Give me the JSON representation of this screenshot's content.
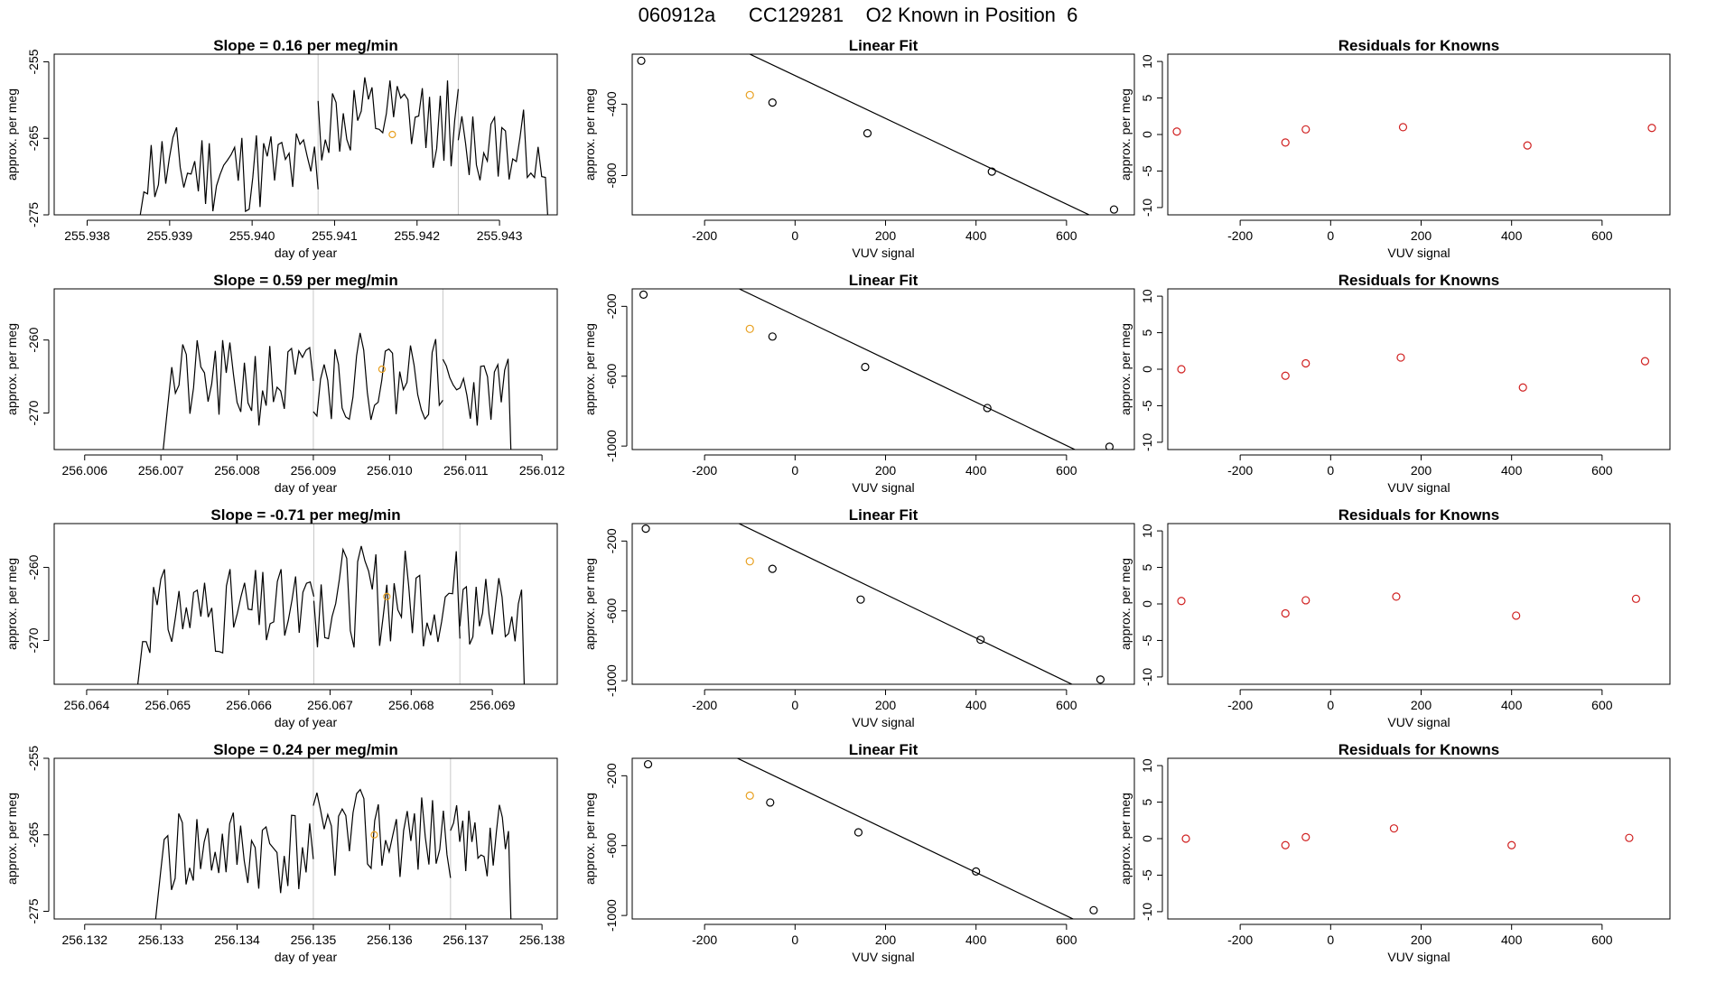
{
  "page": {
    "title": "060912a      CC129281    O2 Known in Position  6"
  },
  "colors": {
    "line": "#000000",
    "vline": "#c8c8c8",
    "known": "#e8a020",
    "residual": "#d02020",
    "fitpoint": "#000000"
  },
  "chart_data": [
    {
      "type": "line",
      "title": "Slope =  0.16  per meg/min",
      "xlabel": "day of year",
      "ylabel": "approx. per meg",
      "xlim": [
        255.9376,
        255.9437
      ],
      "ylim": [
        -275,
        -254
      ],
      "xticks": [
        255.938,
        255.939,
        255.94,
        255.941,
        255.942,
        255.943
      ],
      "xtick_labels": [
        "255.938",
        "255.939",
        "255.940",
        "255.941",
        "255.942",
        "255.943"
      ],
      "yticks": [
        -275,
        -265,
        -255
      ],
      "ytick_labels": [
        "-275",
        "-265",
        "-255"
      ],
      "vlines": [
        255.9408,
        255.9425
      ],
      "known_point": [
        255.9417,
        -264.5
      ],
      "segments": [
        {
          "x_start": 255.9386,
          "x_end": 255.9408,
          "base": -269,
          "amp": 6,
          "ramp": 0.25,
          "seed": 11
        },
        {
          "x_start": 255.9408,
          "x_end": 255.9425,
          "base": -263,
          "amp": 6,
          "seed": 12
        },
        {
          "x_start": 255.9425,
          "x_end": 255.9436,
          "base": -266,
          "amp": 5,
          "fall": 0.12,
          "seed": 13
        }
      ]
    },
    {
      "type": "scatter",
      "title": "Linear Fit",
      "xlabel": "VUV signal",
      "ylabel": "approx. per meg",
      "xlim": [
        -360,
        750
      ],
      "ylim": [
        -1020,
        -120
      ],
      "xticks": [
        -200,
        0,
        200,
        400,
        600
      ],
      "xtick_labels": [
        "-200",
        "0",
        "200",
        "400",
        "600"
      ],
      "yticks": [
        -800,
        -400
      ],
      "ytick_labels": [
        "-800",
        "-400"
      ],
      "fit": {
        "slope": -1.2,
        "intercept": -240
      },
      "points": [
        [
          -340,
          -157
        ],
        [
          -100,
          -349
        ],
        [
          -50,
          -391
        ],
        [
          160,
          -563
        ],
        [
          435,
          -778
        ],
        [
          705,
          -990
        ]
      ],
      "known_index": 1
    },
    {
      "type": "scatter",
      "title": "Residuals for Knowns",
      "xlabel": "VUV signal",
      "ylabel": "approx. per meg",
      "xlim": [
        -360,
        750
      ],
      "ylim": [
        -11,
        11
      ],
      "xticks": [
        -200,
        0,
        200,
        400,
        600
      ],
      "xtick_labels": [
        "-200",
        "0",
        "200",
        "400",
        "600"
      ],
      "yticks": [
        -10,
        -5,
        0,
        5,
        10
      ],
      "ytick_labels": [
        "-10",
        "-5",
        "0",
        "5",
        "10"
      ],
      "points": [
        [
          -340,
          0.4
        ],
        [
          -100,
          -1.1
        ],
        [
          -55,
          0.7
        ],
        [
          160,
          1.0
        ],
        [
          435,
          -1.5
        ],
        [
          710,
          0.9
        ]
      ]
    },
    {
      "type": "line",
      "title": "Slope =  0.59  per meg/min",
      "xlabel": "day of year",
      "ylabel": "approx. per meg",
      "xlim": [
        256.0056,
        256.0122
      ],
      "ylim": [
        -275,
        -253
      ],
      "xticks": [
        256.006,
        256.007,
        256.008,
        256.009,
        256.01,
        256.011,
        256.012
      ],
      "xtick_labels": [
        "256.006",
        "256.007",
        "256.008",
        "256.009",
        "256.010",
        "256.011",
        "256.012"
      ],
      "yticks": [
        -270,
        -260
      ],
      "ytick_labels": [
        "-270",
        "-260"
      ],
      "vlines": [
        256.009,
        256.0107
      ],
      "known_point": [
        256.0099,
        -264
      ],
      "segments": [
        {
          "x_start": 256.007,
          "x_end": 256.009,
          "base": -266,
          "amp": 6,
          "ramp": 0.2,
          "seed": 21
        },
        {
          "x_start": 256.009,
          "x_end": 256.0107,
          "base": -265,
          "amp": 6,
          "seed": 22
        },
        {
          "x_start": 256.0107,
          "x_end": 256.0116,
          "base": -267,
          "amp": 5,
          "fall": 0.12,
          "seed": 23
        }
      ]
    },
    {
      "type": "scatter",
      "title": "Linear Fit",
      "xlabel": "VUV signal",
      "ylabel": "approx. per meg",
      "xlim": [
        -360,
        750
      ],
      "ylim": [
        -1020,
        -100
      ],
      "xticks": [
        -200,
        0,
        200,
        400,
        600
      ],
      "xtick_labels": [
        "-200",
        "0",
        "200",
        "400",
        "600"
      ],
      "yticks": [
        -1000,
        -600,
        -200
      ],
      "ytick_labels": [
        "-1000",
        "-600",
        "-200"
      ],
      "fit": {
        "slope": -1.24,
        "intercept": -253
      },
      "points": [
        [
          -335,
          -133
        ],
        [
          -100,
          -329
        ],
        [
          -50,
          -373
        ],
        [
          155,
          -547
        ],
        [
          425,
          -782
        ],
        [
          695,
          -1004
        ]
      ],
      "known_index": 1
    },
    {
      "type": "scatter",
      "title": "Residuals for Knowns",
      "xlabel": "VUV signal",
      "ylabel": "approx. per meg",
      "xlim": [
        -360,
        750
      ],
      "ylim": [
        -11,
        11
      ],
      "xticks": [
        -200,
        0,
        200,
        400,
        600
      ],
      "xtick_labels": [
        "-200",
        "0",
        "200",
        "400",
        "600"
      ],
      "yticks": [
        -10,
        -5,
        0,
        5,
        10
      ],
      "ytick_labels": [
        "-10",
        "-5",
        "0",
        "5",
        "10"
      ],
      "points": [
        [
          -330,
          0.0
        ],
        [
          -100,
          -0.9
        ],
        [
          -55,
          0.8
        ],
        [
          155,
          1.6
        ],
        [
          425,
          -2.5
        ],
        [
          695,
          1.1
        ]
      ]
    },
    {
      "type": "line",
      "title": "Slope =  -0.71  per meg/min",
      "xlabel": "day of year",
      "ylabel": "approx. per meg",
      "xlim": [
        256.0636,
        256.0698
      ],
      "ylim": [
        -276,
        -254
      ],
      "xticks": [
        256.064,
        256.065,
        256.066,
        256.067,
        256.068,
        256.069
      ],
      "xtick_labels": [
        "256.064",
        "256.065",
        "256.066",
        "256.067",
        "256.068",
        "256.069"
      ],
      "yticks": [
        -270,
        -260
      ],
      "ytick_labels": [
        "-270",
        "-260"
      ],
      "vlines": [
        256.0668,
        256.0686
      ],
      "known_point": [
        256.0677,
        -264
      ],
      "segments": [
        {
          "x_start": 256.0646,
          "x_end": 256.0668,
          "base": -266,
          "amp": 6,
          "ramp": 0.2,
          "seed": 31
        },
        {
          "x_start": 256.0668,
          "x_end": 256.0686,
          "base": -264,
          "amp": 7,
          "seed": 32
        },
        {
          "x_start": 256.0686,
          "x_end": 256.0694,
          "base": -266,
          "amp": 5,
          "fall": 0.12,
          "seed": 33
        }
      ]
    },
    {
      "type": "scatter",
      "title": "Linear Fit",
      "xlabel": "VUV signal",
      "ylabel": "approx. per meg",
      "xlim": [
        -360,
        750
      ],
      "ylim": [
        -1020,
        -100
      ],
      "xticks": [
        -200,
        0,
        200,
        400,
        600
      ],
      "xtick_labels": [
        "-200",
        "0",
        "200",
        "400",
        "600"
      ],
      "yticks": [
        -1000,
        -600,
        -200
      ],
      "ytick_labels": [
        "-1000",
        "-600",
        "-200"
      ],
      "fit": {
        "slope": -1.25,
        "intercept": -255
      },
      "points": [
        [
          -330,
          -129
        ],
        [
          -100,
          -316
        ],
        [
          -50,
          -359
        ],
        [
          145,
          -535
        ],
        [
          410,
          -765
        ],
        [
          675,
          -993
        ]
      ],
      "known_index": 1
    },
    {
      "type": "scatter",
      "title": "Residuals for Knowns",
      "xlabel": "VUV signal",
      "ylabel": "approx. per meg",
      "xlim": [
        -360,
        750
      ],
      "ylim": [
        -11,
        11
      ],
      "xticks": [
        -200,
        0,
        200,
        400,
        600
      ],
      "xtick_labels": [
        "-200",
        "0",
        "200",
        "400",
        "600"
      ],
      "yticks": [
        -10,
        -5,
        0,
        5,
        10
      ],
      "ytick_labels": [
        "-10",
        "-5",
        "0",
        "5",
        "10"
      ],
      "points": [
        [
          -330,
          0.4
        ],
        [
          -100,
          -1.3
        ],
        [
          -55,
          0.5
        ],
        [
          145,
          1.0
        ],
        [
          410,
          -1.6
        ],
        [
          675,
          0.7
        ]
      ]
    },
    {
      "type": "line",
      "title": "Slope =  0.24  per meg/min",
      "xlabel": "day of year",
      "ylabel": "approx. per meg",
      "xlim": [
        256.1316,
        256.1382
      ],
      "ylim": [
        -276,
        -255
      ],
      "xticks": [
        256.132,
        256.133,
        256.134,
        256.135,
        256.136,
        256.137,
        256.138
      ],
      "xtick_labels": [
        "256.132",
        "256.133",
        "256.134",
        "256.135",
        "256.136",
        "256.137",
        "256.138"
      ],
      "yticks": [
        -275,
        -265,
        -255
      ],
      "ytick_labels": [
        "-275",
        "-265",
        "-255"
      ],
      "vlines": [
        256.135,
        256.1368
      ],
      "known_point": [
        256.1358,
        -265
      ],
      "segments": [
        {
          "x_start": 256.1329,
          "x_end": 256.135,
          "base": -267,
          "amp": 6,
          "ramp": 0.2,
          "seed": 41
        },
        {
          "x_start": 256.135,
          "x_end": 256.1368,
          "base": -265,
          "amp": 6,
          "seed": 42
        },
        {
          "x_start": 256.1368,
          "x_end": 256.1376,
          "base": -266,
          "amp": 5,
          "fall": 0.12,
          "seed": 43
        }
      ]
    },
    {
      "type": "scatter",
      "title": "Linear Fit",
      "xlabel": "VUV signal",
      "ylabel": "approx. per meg",
      "xlim": [
        -360,
        750
      ],
      "ylim": [
        -1020,
        -100
      ],
      "xticks": [
        -200,
        0,
        200,
        400,
        600
      ],
      "xtick_labels": [
        "-200",
        "0",
        "200",
        "400",
        "600"
      ],
      "yticks": [
        -1000,
        -600,
        -200
      ],
      "ytick_labels": [
        "-1000",
        "-600",
        "-200"
      ],
      "fit": {
        "slope": -1.24,
        "intercept": -258
      },
      "points": [
        [
          -325,
          -134
        ],
        [
          -100,
          -314
        ],
        [
          -55,
          -353
        ],
        [
          140,
          -524
        ],
        [
          400,
          -748
        ],
        [
          660,
          -970
        ]
      ],
      "known_index": 1
    },
    {
      "type": "scatter",
      "title": "Residuals for Knowns",
      "xlabel": "VUV signal",
      "ylabel": "approx. per meg",
      "xlim": [
        -360,
        750
      ],
      "ylim": [
        -11,
        11
      ],
      "xticks": [
        -200,
        0,
        200,
        400,
        600
      ],
      "xtick_labels": [
        "-200",
        "0",
        "200",
        "400",
        "600"
      ],
      "yticks": [
        -10,
        -5,
        0,
        5,
        10
      ],
      "ytick_labels": [
        "-10",
        "-5",
        "0",
        "5",
        "10"
      ],
      "points": [
        [
          -320,
          0.0
        ],
        [
          -100,
          -0.9
        ],
        [
          -55,
          0.2
        ],
        [
          140,
          1.4
        ],
        [
          400,
          -0.9
        ],
        [
          660,
          0.1
        ]
      ]
    }
  ]
}
